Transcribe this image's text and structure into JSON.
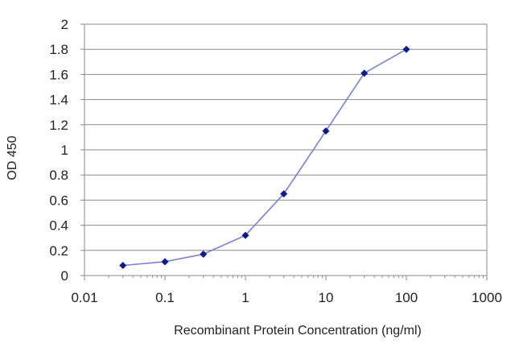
{
  "chart_data": {
    "type": "line",
    "title": "",
    "xlabel": "Recombinant Protein Concentration (ng/ml)",
    "ylabel": "OD 450",
    "xscale": "log",
    "xlim": [
      0.01,
      1000
    ],
    "ylim": [
      0,
      2
    ],
    "grid": "horizontal",
    "line_color": "#7a7fd6",
    "marker_color": "#0b1a8c",
    "x_ticks": [
      "0.01",
      "0.1",
      "1",
      "10",
      "100",
      "1000"
    ],
    "y_ticks": [
      "0",
      "0.2",
      "0.4",
      "0.6",
      "0.8",
      "1",
      "1.2",
      "1.4",
      "1.6",
      "1.8",
      "2"
    ],
    "series": [
      {
        "x": [
          0.03,
          0.1,
          0.3,
          1,
          3,
          10,
          30,
          100
        ],
        "y": [
          0.08,
          0.11,
          0.17,
          0.32,
          0.65,
          1.15,
          1.61,
          1.8
        ]
      }
    ]
  }
}
